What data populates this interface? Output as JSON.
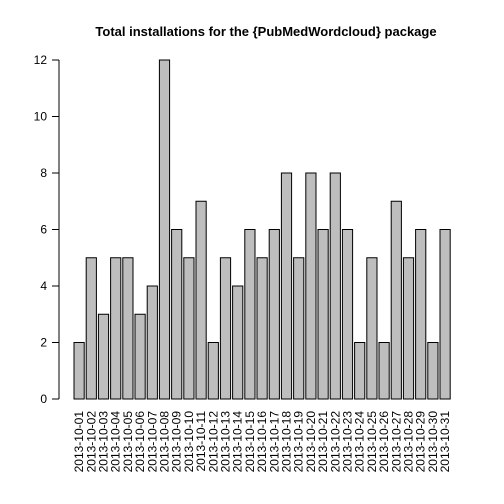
{
  "chart_data": {
    "type": "bar",
    "title": "Total installations for the {PubMedWordcloud} package",
    "xlabel": "",
    "ylabel": "",
    "ylim": [
      0,
      12
    ],
    "yticks": [
      0,
      2,
      4,
      6,
      8,
      10,
      12
    ],
    "grid": false,
    "bar_color": "#bebebe",
    "categories": [
      "2013-10-01",
      "2013-10-02",
      "2013-10-03",
      "2013-10-04",
      "2013-10-05",
      "2013-10-06",
      "2013-10-07",
      "2013-10-08",
      "2013-10-09",
      "2013-10-10",
      "2013-10-11",
      "2013-10-12",
      "2013-10-13",
      "2013-10-14",
      "2013-10-15",
      "2013-10-16",
      "2013-10-17",
      "2013-10-18",
      "2013-10-19",
      "2013-10-20",
      "2013-10-21",
      "2013-10-22",
      "2013-10-23",
      "2013-10-24",
      "2013-10-25",
      "2013-10-26",
      "2013-10-27",
      "2013-10-28",
      "2013-10-29",
      "2013-10-30",
      "2013-10-31"
    ],
    "values": [
      2,
      5,
      3,
      5,
      5,
      3,
      4,
      12,
      6,
      5,
      7,
      2,
      5,
      4,
      6,
      5,
      6,
      8,
      5,
      8,
      6,
      8,
      6,
      2,
      5,
      2,
      7,
      5,
      6,
      2,
      6
    ]
  }
}
